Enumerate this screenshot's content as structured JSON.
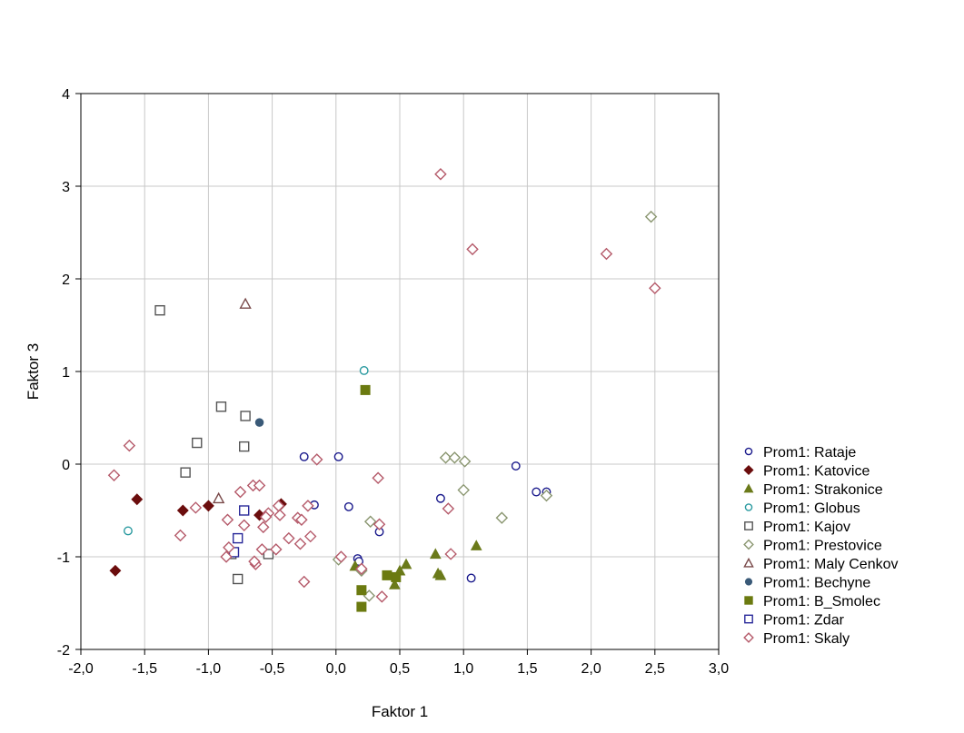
{
  "chart_data": {
    "type": "scatter",
    "title": "",
    "xlabel": "Faktor 1",
    "ylabel": "Faktor 3",
    "xlim": [
      -2.0,
      3.0
    ],
    "ylim": [
      -2,
      4
    ],
    "xticks": [
      -2.0,
      -1.5,
      -1.0,
      -0.5,
      0.0,
      0.5,
      1.0,
      1.5,
      2.0,
      2.5,
      3.0
    ],
    "xtick_labels": [
      "-2,0",
      "-1,5",
      "-1,0",
      "-0,5",
      "0,0",
      "0,5",
      "1,0",
      "1,5",
      "2,0",
      "2,5",
      "3,0"
    ],
    "yticks": [
      -2,
      -1,
      0,
      1,
      2,
      3,
      4
    ],
    "ytick_labels": [
      "-2",
      "-1",
      "0",
      "1",
      "2",
      "3",
      "4"
    ],
    "grid": true,
    "legend_position": "right",
    "series": [
      {
        "name": "Prom1: Rataje",
        "marker": "circle-open",
        "color": "#1a1a8c",
        "points": [
          [
            -0.25,
            0.08
          ],
          [
            0.02,
            0.08
          ],
          [
            -0.17,
            -0.44
          ],
          [
            0.1,
            -0.46
          ],
          [
            0.34,
            -0.73
          ],
          [
            0.17,
            -1.02
          ],
          [
            0.82,
            -0.37
          ],
          [
            1.41,
            -0.02
          ],
          [
            1.57,
            -0.3
          ],
          [
            1.65,
            -0.3
          ],
          [
            1.06,
            -1.23
          ],
          [
            0.18,
            -1.05
          ]
        ]
      },
      {
        "name": "Prom1: Katovice",
        "marker": "diamond-filled",
        "color": "#6b0d0d",
        "points": [
          [
            -1.56,
            -0.38
          ],
          [
            -1.2,
            -0.5
          ],
          [
            -1.0,
            -0.45
          ],
          [
            -0.6,
            -0.55
          ],
          [
            -0.43,
            -0.43
          ],
          [
            -1.73,
            -1.15
          ]
        ]
      },
      {
        "name": "Prom1: Strakonice",
        "marker": "triangle-filled",
        "color": "#6b7a1a",
        "points": [
          [
            0.15,
            -1.1
          ],
          [
            0.46,
            -1.3
          ],
          [
            0.5,
            -1.15
          ],
          [
            0.55,
            -1.08
          ],
          [
            0.78,
            -0.97
          ],
          [
            0.8,
            -1.18
          ],
          [
            0.82,
            -1.2
          ],
          [
            1.1,
            -0.88
          ]
        ]
      },
      {
        "name": "Prom1: Globus",
        "marker": "circle-open",
        "color": "#2a9aa0",
        "points": [
          [
            0.22,
            1.01
          ],
          [
            -1.63,
            -0.72
          ]
        ]
      },
      {
        "name": "Prom1: Kajov",
        "marker": "square-open",
        "color": "#555555",
        "points": [
          [
            -1.38,
            1.66
          ],
          [
            -0.9,
            0.62
          ],
          [
            -0.71,
            0.52
          ],
          [
            -1.09,
            0.23
          ],
          [
            -1.18,
            -0.09
          ],
          [
            -0.72,
            0.19
          ],
          [
            -0.77,
            -1.24
          ],
          [
            -0.53,
            -0.97
          ],
          [
            -0.82,
            -0.97
          ]
        ]
      },
      {
        "name": "Prom1: Prestovice",
        "marker": "diamond-open",
        "color": "#8a9670",
        "points": [
          [
            2.47,
            2.67
          ],
          [
            0.86,
            0.07
          ],
          [
            0.93,
            0.07
          ],
          [
            1.01,
            0.03
          ],
          [
            1.0,
            -0.28
          ],
          [
            1.3,
            -0.58
          ],
          [
            1.65,
            -0.34
          ],
          [
            0.27,
            -0.62
          ],
          [
            0.26,
            -1.42
          ],
          [
            0.2,
            -1.15
          ],
          [
            0.02,
            -1.03
          ]
        ]
      },
      {
        "name": "Prom1: Maly Cenkov",
        "marker": "triangle-open",
        "color": "#7a4a4a",
        "points": [
          [
            -0.71,
            1.73
          ],
          [
            -0.92,
            -0.37
          ]
        ]
      },
      {
        "name": "Prom1: Bechyne",
        "marker": "circle-filled",
        "color": "#3a5a78",
        "points": [
          [
            -0.6,
            0.45
          ]
        ]
      },
      {
        "name": "Prom1: B_Smolec",
        "marker": "square-filled",
        "color": "#6b7a10",
        "points": [
          [
            0.23,
            0.8
          ],
          [
            0.2,
            -1.36
          ],
          [
            0.2,
            -1.54
          ],
          [
            0.4,
            -1.2
          ],
          [
            0.47,
            -1.22
          ]
        ]
      },
      {
        "name": "Prom1: Zdar",
        "marker": "square-open",
        "color": "#2a2a9a",
        "points": [
          [
            -0.72,
            -0.5
          ],
          [
            -0.77,
            -0.8
          ],
          [
            -0.8,
            -0.95
          ]
        ]
      },
      {
        "name": "Prom1: Skaly",
        "marker": "diamond-open",
        "color": "#b55a6a",
        "points": [
          [
            0.82,
            3.13
          ],
          [
            1.07,
            2.32
          ],
          [
            2.12,
            2.27
          ],
          [
            2.5,
            1.9
          ],
          [
            -1.62,
            0.2
          ],
          [
            -1.74,
            -0.12
          ],
          [
            -1.22,
            -0.77
          ],
          [
            -0.15,
            0.05
          ],
          [
            0.33,
            -0.15
          ],
          [
            0.88,
            -0.48
          ],
          [
            0.9,
            -0.97
          ],
          [
            0.36,
            -1.43
          ],
          [
            -0.25,
            -1.27
          ],
          [
            -1.1,
            -0.47
          ],
          [
            -0.85,
            -0.6
          ],
          [
            -0.75,
            -0.3
          ],
          [
            -0.65,
            -0.23
          ],
          [
            -0.6,
            -0.23
          ],
          [
            -0.72,
            -0.66
          ],
          [
            -0.57,
            -0.68
          ],
          [
            -0.53,
            -0.53
          ],
          [
            -0.55,
            -0.57
          ],
          [
            -0.45,
            -0.45
          ],
          [
            -0.44,
            -0.55
          ],
          [
            -0.3,
            -0.58
          ],
          [
            -0.27,
            -0.6
          ],
          [
            -0.22,
            -0.45
          ],
          [
            -0.2,
            -0.78
          ],
          [
            -0.28,
            -0.86
          ],
          [
            -0.47,
            -0.92
          ],
          [
            -0.58,
            -0.92
          ],
          [
            -0.63,
            -1.08
          ],
          [
            -0.64,
            -1.05
          ],
          [
            -0.84,
            -0.9
          ],
          [
            -0.86,
            -1.0
          ],
          [
            -0.37,
            -0.8
          ],
          [
            0.04,
            -1.0
          ],
          [
            0.34,
            -0.65
          ],
          [
            0.2,
            -1.13
          ]
        ]
      }
    ]
  }
}
